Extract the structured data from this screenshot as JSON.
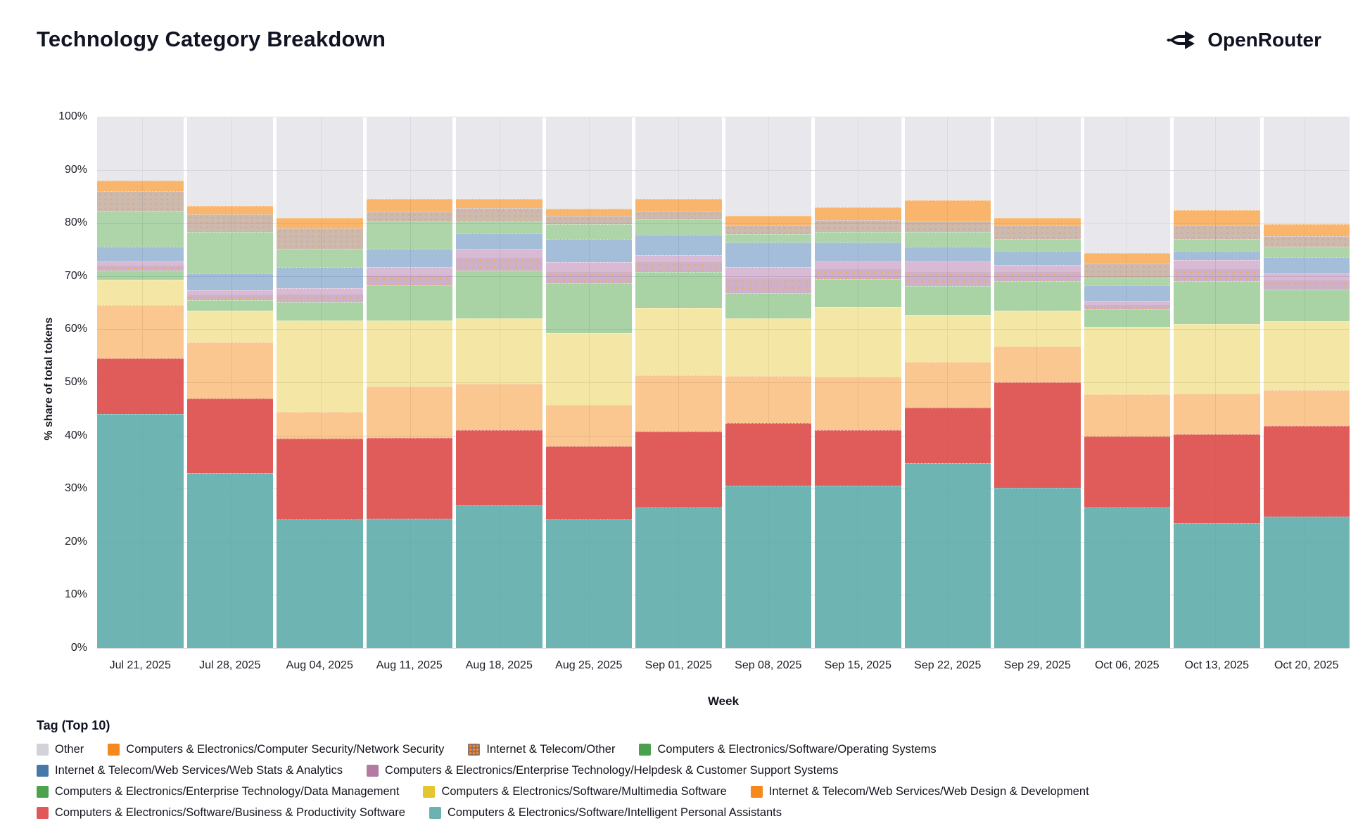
{
  "header": {
    "title": "Technology Category Breakdown",
    "brand": "OpenRouter"
  },
  "legend": {
    "heading": "Tag (Top 10)",
    "rows": [
      [
        0,
        1,
        2,
        3
      ],
      [
        4,
        5
      ],
      [
        6,
        7,
        8
      ],
      [
        9,
        10
      ]
    ],
    "items": [
      {
        "name": "Other",
        "color": "#d2d2d9",
        "pattern": false
      },
      {
        "name": "Computers & Electronics/Computer Security/Network Security",
        "color": "#f5891d",
        "pattern": false
      },
      {
        "name": "Internet & Telecom/Other",
        "color": "#8b6f72",
        "pattern": true
      },
      {
        "name": "Computers & Electronics/Software/Operating Systems",
        "color": "#4ba04b",
        "pattern": false
      },
      {
        "name": "Internet & Telecom/Web Services/Web Stats & Analytics",
        "color": "#4878a8",
        "pattern": false
      },
      {
        "name": "Computers & Electronics/Enterprise Technology/Helpdesk & Customer Support Systems",
        "color": "#b37aa2",
        "pattern": false
      },
      {
        "name": "Computers & Electronics/Enterprise Technology/Data Management",
        "color": "#4da34d",
        "pattern": false
      },
      {
        "name": "Computers & Electronics/Software/Multimedia Software",
        "color": "#e4c62e",
        "pattern": false
      },
      {
        "name": "Internet & Telecom/Web Services/Web Design & Development",
        "color": "#f5891d",
        "pattern": false
      },
      {
        "name": "Computers & Electronics/Software/Business & Productivity Software",
        "color": "#e15858",
        "pattern": false
      },
      {
        "name": "Computers & Electronics/Software/Intelligent Personal Assistants",
        "color": "#6cb2af",
        "pattern": false
      }
    ]
  },
  "chart_data": {
    "type": "bar",
    "stacked": true,
    "normalized": "percent",
    "title": "Technology Category Breakdown",
    "xlabel": "Week",
    "ylabel": "% share of total tokens",
    "ylim": [
      0,
      100
    ],
    "ytick_labels": [
      "0%",
      "10%",
      "20%",
      "30%",
      "40%",
      "50%",
      "60%",
      "70%",
      "80%",
      "90%",
      "100%"
    ],
    "grid": true,
    "legend_position": "bottom",
    "categories": [
      "Jul 21, 2025",
      "Jul 28, 2025",
      "Aug 04, 2025",
      "Aug 11, 2025",
      "Aug 18, 2025",
      "Aug 25, 2025",
      "Sep 01, 2025",
      "Sep 08, 2025",
      "Sep 15, 2025",
      "Sep 22, 2025",
      "Sep 29, 2025",
      "Oct 06, 2025",
      "Oct 13, 2025",
      "Oct 20, 2025"
    ],
    "series": [
      {
        "name": "Computers & Electronics/Software/Intelligent Personal Assistants",
        "color": "rgba(84,167,164,0.85)",
        "values": [
          44.0,
          33.0,
          24.2,
          24.4,
          26.8,
          24.2,
          26.5,
          30.6,
          30.6,
          34.8,
          30.2,
          26.5,
          23.6,
          24.8
        ]
      },
      {
        "name": "Computers & Electronics/Software/Business & Productivity Software",
        "color": "rgba(221,74,72,0.9)",
        "values": [
          10.5,
          14.0,
          15.2,
          15.2,
          14.2,
          13.8,
          14.3,
          11.7,
          10.4,
          10.4,
          19.8,
          13.3,
          16.6,
          17.0
        ]
      },
      {
        "name": "Internet & Telecom/Web Services/Web Design & Development",
        "color": "rgba(242,131,7,0.45)",
        "values": [
          10.0,
          10.5,
          5.0,
          9.6,
          8.8,
          7.8,
          10.5,
          8.9,
          10.0,
          8.6,
          6.8,
          8.0,
          7.7,
          6.7
        ]
      },
      {
        "name": "Computers & Electronics/Software/Multimedia Software",
        "color": "rgba(227,192,27,0.4)",
        "values": [
          4.8,
          6.0,
          17.2,
          12.4,
          12.2,
          13.5,
          12.7,
          10.8,
          13.2,
          8.9,
          6.7,
          12.7,
          13.1,
          13.0
        ]
      },
      {
        "name": "Computers & Electronics/Enterprise Technology/Data Management",
        "color": "rgba(64,158,55,0.45)",
        "values": [
          1.7,
          2.0,
          3.5,
          6.6,
          9.0,
          9.3,
          6.8,
          4.8,
          5.3,
          5.4,
          5.5,
          3.3,
          8.0,
          6.0
        ]
      },
      {
        "name": "Computers & Electronics/Enterprise Technology/Helpdesk & Customer Support Systems",
        "color": "rgba(164,90,152,0.42)",
        "pattern": "helpdesk",
        "values": [
          1.7,
          1.8,
          2.6,
          3.5,
          4.2,
          4.0,
          3.2,
          4.9,
          3.3,
          4.7,
          3.1,
          1.5,
          4.0,
          3.0
        ]
      },
      {
        "name": "Internet & Telecom/Web Services/Web Stats & Analytics",
        "color": "rgba(74,124,180,0.5)",
        "values": [
          2.8,
          3.2,
          4.0,
          3.5,
          2.8,
          4.4,
          3.8,
          4.6,
          3.5,
          2.8,
          2.7,
          3.0,
          1.8,
          3.0
        ]
      },
      {
        "name": "Computers & Electronics/Software/Operating Systems",
        "color": "rgba(64,158,55,0.43)",
        "values": [
          6.8,
          7.8,
          3.5,
          5.1,
          2.3,
          2.8,
          2.9,
          1.6,
          2.0,
          2.7,
          2.2,
          1.4,
          2.2,
          2.0
        ]
      },
      {
        "name": "Internet & Telecom/Other",
        "color": "rgba(142,100,78,0.45)",
        "pattern": "itother",
        "values": [
          3.7,
          3.3,
          3.8,
          1.9,
          2.5,
          1.5,
          1.6,
          1.8,
          2.3,
          2.0,
          2.6,
          2.7,
          2.6,
          2.0
        ]
      },
      {
        "name": "Computers & Electronics/Computer Security/Network Security",
        "color": "rgba(245,128,0,0.58)",
        "values": [
          2.0,
          1.6,
          2.0,
          2.3,
          1.8,
          1.4,
          2.2,
          1.7,
          2.4,
          4.0,
          1.4,
          1.9,
          2.8,
          2.3
        ]
      },
      {
        "name": "Other",
        "color": "rgba(211,211,221,0.55)",
        "values": [
          12.0,
          16.8,
          19.0,
          15.5,
          15.4,
          17.3,
          15.5,
          18.6,
          17.0,
          15.7,
          19.0,
          25.7,
          17.6,
          20.2
        ]
      }
    ]
  }
}
